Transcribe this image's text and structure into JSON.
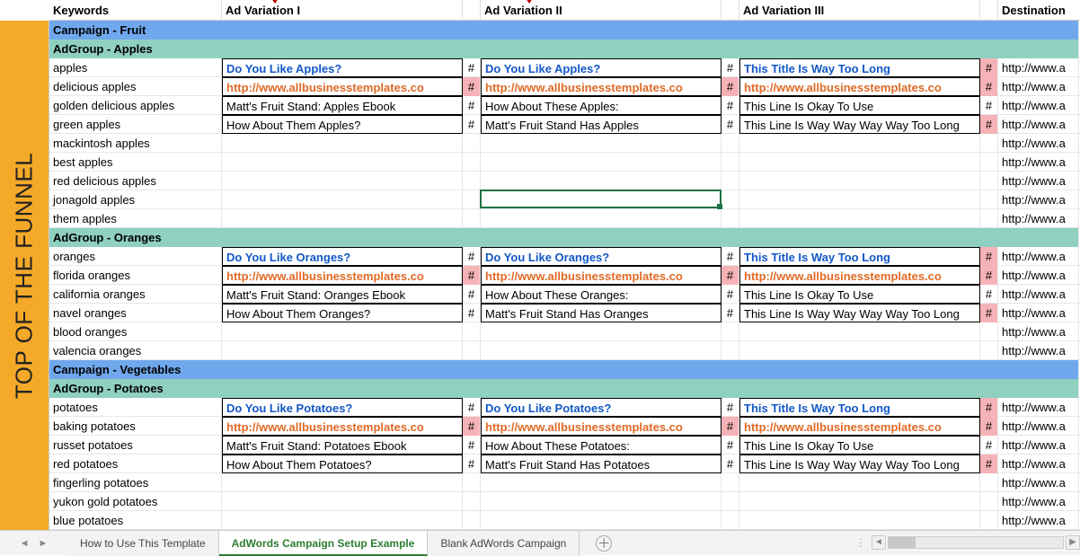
{
  "sidebar": {
    "label": "TOP OF THE FUNNEL",
    "bg": "#f4a928"
  },
  "cols": {
    "keywords_w": 192,
    "ad_w": 268,
    "hash_w": 20,
    "dest_w": 90,
    "headers": {
      "kw": "Keywords",
      "v1": "Ad Variation I",
      "v2": "Ad Variation II",
      "v3": "Ad Variation III",
      "dest": "Destination"
    }
  },
  "colors": {
    "campaign_bg": "#6fa8ec",
    "group_bg": "#8fd0c0",
    "title_link": "#1358c7",
    "url_link": "#e06a26",
    "hash_err": "#f6b3b7",
    "sel_border": "#1f7246"
  },
  "campaigns": [
    {
      "name": "Campaign - Fruit",
      "groups": [
        {
          "name": "AdGroup - Apples",
          "keywords": [
            "apples",
            "delicious apples",
            "golden delicious apples",
            "green apples",
            "mackintosh apples",
            "best apples",
            "red delicious apples",
            "jonagold apples",
            "them apples"
          ],
          "ads": {
            "v1": {
              "title": "Do You Like Apples?",
              "url": "http://www.allbusinesstemplates.co",
              "line1": "Matt's Fruit Stand: Apples Ebook",
              "line2": "How About Them Apples?",
              "h": [
                "",
                "#",
                "",
                "",
                ""
              ]
            },
            "v2": {
              "title": "Do You Like Apples?",
              "url": "http://www.allbusinesstemplates.co",
              "line1": "How About These Apples:",
              "line2": "Matt's Fruit Stand Has Apples",
              "h": [
                "",
                "#",
                "",
                "",
                ""
              ]
            },
            "v3": {
              "title": "This Title Is Way Too Long",
              "url": "http://www.allbusinesstemplates.co",
              "line1": "This Line Is Okay To Use",
              "line2": "This Line Is Way Way Way Way Too Long",
              "h": [
                "#",
                "#",
                "",
                "",
                "#"
              ]
            }
          },
          "dest": [
            "http://www.a",
            "http://www.a",
            "http://www.a",
            "http://www.a",
            "http://www.a",
            "http://www.a",
            "http://www.a",
            "http://www.a",
            "http://www.a"
          ]
        },
        {
          "name": "AdGroup - Oranges",
          "keywords": [
            "oranges",
            "florida oranges",
            "california oranges",
            "navel oranges",
            "blood oranges",
            "valencia oranges"
          ],
          "ads": {
            "v1": {
              "title": "Do You Like Oranges?",
              "url": "http://www.allbusinesstemplates.co",
              "line1": "Matt's Fruit Stand: Oranges Ebook",
              "line2": "How About Them Oranges?",
              "h": [
                "",
                "#",
                "",
                "",
                ""
              ]
            },
            "v2": {
              "title": "Do You Like Oranges?",
              "url": "http://www.allbusinesstemplates.co",
              "line1": "How About These Oranges:",
              "line2": "Matt's Fruit Stand Has Oranges",
              "h": [
                "",
                "#",
                "",
                "",
                ""
              ]
            },
            "v3": {
              "title": "This Title Is Way Too Long",
              "url": "http://www.allbusinesstemplates.co",
              "line1": "This Line Is Okay To Use",
              "line2": "This Line Is Way Way Way Way Too Long",
              "h": [
                "#",
                "#",
                "",
                "",
                "#"
              ]
            }
          },
          "dest": [
            "http://www.a",
            "http://www.a",
            "http://www.a",
            "http://www.a",
            "http://www.a",
            "http://www.a"
          ]
        }
      ]
    },
    {
      "name": "Campaign - Vegetables",
      "groups": [
        {
          "name": "AdGroup - Potatoes",
          "keywords": [
            "potatoes",
            "baking potatoes",
            "russet potatoes",
            "red potatoes",
            "fingerling potatoes",
            "yukon gold potatoes",
            "blue potatoes"
          ],
          "ads": {
            "v1": {
              "title": "Do You Like Potatoes?",
              "url": "http://www.allbusinesstemplates.co",
              "line1": "Matt's Fruit Stand: Potatoes Ebook",
              "line2": "How About Them Potatoes?",
              "h": [
                "",
                "#",
                "",
                "",
                ""
              ]
            },
            "v2": {
              "title": "Do You Like Potatoes?",
              "url": "http://www.allbusinesstemplates.co",
              "line1": "How About These Potatoes:",
              "line2": "Matt's Fruit Stand Has Potatoes",
              "h": [
                "",
                "#",
                "",
                "",
                ""
              ]
            },
            "v3": {
              "title": "This Title Is Way Too Long",
              "url": "http://www.allbusinesstemplates.co",
              "line1": "This Line Is Okay To Use",
              "line2": "This Line Is Way Way Way Way Too Long",
              "h": [
                "#",
                "#",
                "",
                "",
                "#"
              ]
            }
          },
          "dest": [
            "http://www.a",
            "http://www.a",
            "http://www.a",
            "http://www.a",
            "http://www.a",
            "http://www.a",
            "http://www.a"
          ]
        }
      ]
    }
  ],
  "selection": {
    "group": 0,
    "row": 7,
    "col": "v2"
  },
  "tabs": {
    "items": [
      "How to Use This Template",
      "AdWords Campaign Setup Example",
      "Blank AdWords Campaign"
    ],
    "active": 1
  },
  "hash_ok": "#",
  "ticks": [
    247,
    530
  ]
}
